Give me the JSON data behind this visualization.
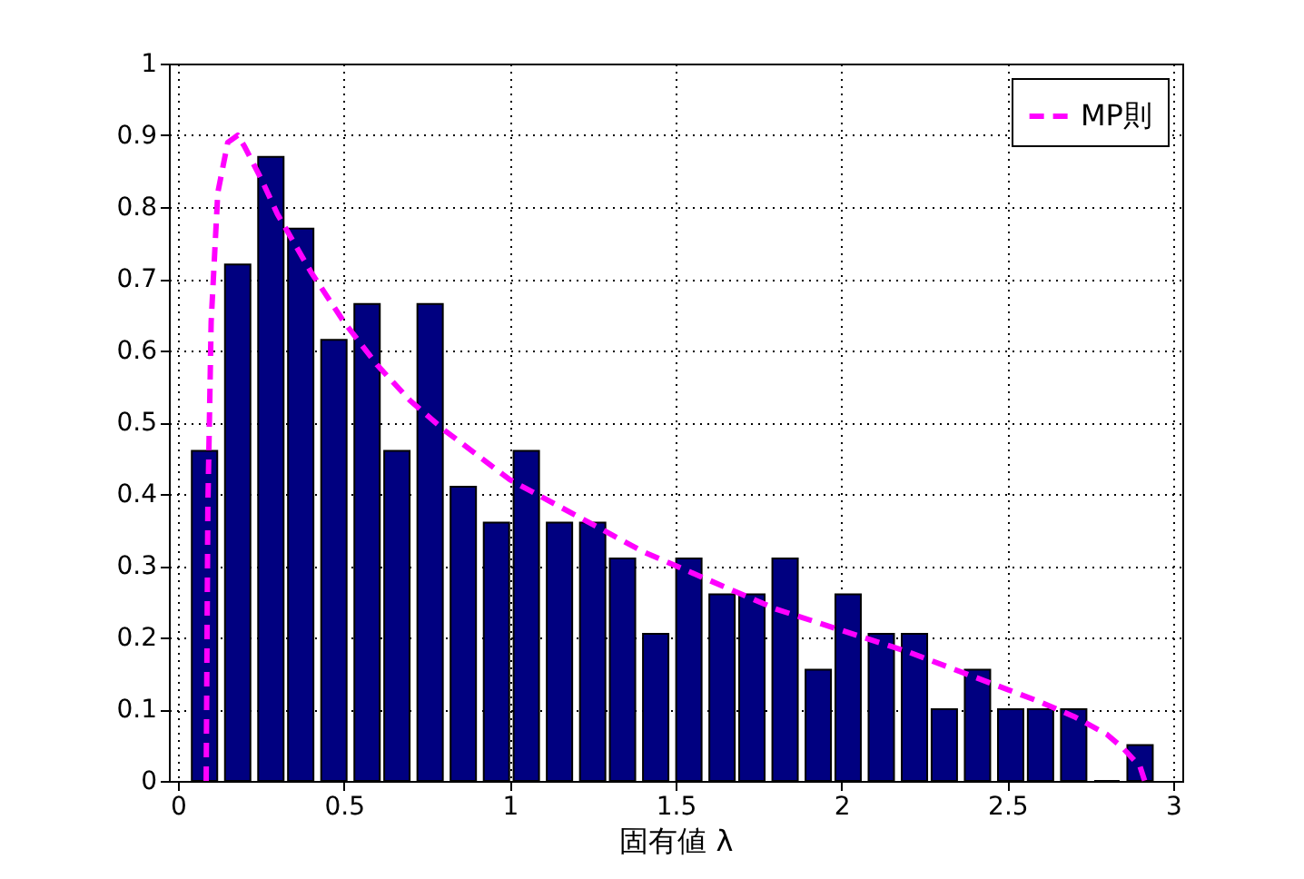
{
  "chart_data": {
    "type": "bar",
    "xlabel": "固有値 λ",
    "x": [
      0.08,
      0.18,
      0.28,
      0.37,
      0.47,
      0.57,
      0.66,
      0.76,
      0.86,
      0.96,
      1.05,
      1.15,
      1.25,
      1.34,
      1.44,
      1.54,
      1.64,
      1.73,
      1.83,
      1.93,
      2.02,
      2.12,
      2.22,
      2.31,
      2.41,
      2.51,
      2.6,
      2.7,
      2.8,
      2.9
    ],
    "values": [
      0.46,
      0.72,
      0.87,
      0.77,
      0.615,
      0.665,
      0.46,
      0.665,
      0.41,
      0.36,
      0.46,
      0.36,
      0.36,
      0.31,
      0.205,
      0.31,
      0.26,
      0.26,
      0.31,
      0.155,
      0.26,
      0.205,
      0.205,
      0.1,
      0.155,
      0.1,
      0.1,
      0.1,
      0,
      0.05
    ],
    "color": "#000080",
    "series": [
      {
        "name": "MP則",
        "type": "line",
        "color": "#ff00ff",
        "line_style": "dashed",
        "x": [
          0.085,
          0.09,
          0.1,
          0.12,
          0.15,
          0.18,
          0.2,
          0.25,
          0.3,
          0.4,
          0.5,
          0.6,
          0.7,
          0.8,
          1.0,
          1.2,
          1.4,
          1.6,
          1.8,
          2.0,
          2.2,
          2.4,
          2.6,
          2.7,
          2.8,
          2.85,
          2.9,
          2.914
        ],
        "values": [
          0,
          0.38,
          0.64,
          0.82,
          0.89,
          0.9,
          0.885,
          0.84,
          0.79,
          0.71,
          0.64,
          0.58,
          0.53,
          0.49,
          0.42,
          0.37,
          0.32,
          0.28,
          0.24,
          0.21,
          0.18,
          0.145,
          0.11,
          0.09,
          0.065,
          0.045,
          0.02,
          0
        ]
      }
    ],
    "xlim": [
      0,
      3
    ],
    "xticks": [
      0,
      0.5,
      1,
      1.5,
      2,
      2.5,
      3
    ],
    "ylim": [
      0,
      1
    ],
    "yticks": [
      0,
      0.1,
      0.2,
      0.3,
      0.4,
      0.5,
      0.6,
      0.7,
      0.8,
      0.9,
      1
    ],
    "grid": true,
    "legend": "top right"
  }
}
